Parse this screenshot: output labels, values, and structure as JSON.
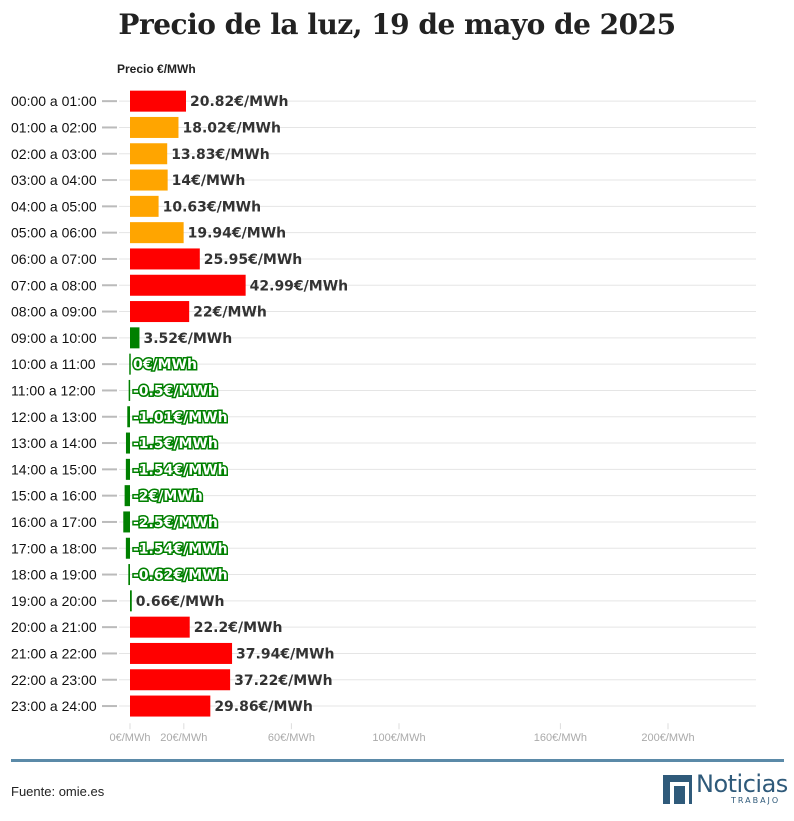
{
  "title": "Precio de la luz, 19 de mayo de 2025",
  "source": "Fuente: omie.es",
  "logo": {
    "word": "Noticias",
    "sub": "TRABAJO",
    "icon": "noticias-trabajo-logo-icon"
  },
  "colors": {
    "red": "#ff0000",
    "orange": "#ffa500",
    "green": "#008000",
    "grid": "#e5e5e5",
    "brand": "#2f5a7a"
  },
  "chart_data": {
    "type": "bar",
    "orientation": "horizontal",
    "value_axis_label": "Precio €/MWh",
    "xlim": [
      0,
      210
    ],
    "grid": true,
    "ticks": [
      {
        "value": 0,
        "label": "0€/MWh"
      },
      {
        "value": 20,
        "label": "20€/MWh"
      },
      {
        "value": 60,
        "label": "60€/MWh"
      },
      {
        "value": 100,
        "label": "100€/MWh"
      },
      {
        "value": 160,
        "label": "160€/MWh"
      },
      {
        "value": 200,
        "label": "200€/MWh"
      }
    ],
    "bars": [
      {
        "category": "00:00 a 01:00",
        "value": 20.82,
        "label": "20.82€/MWh",
        "color": "#ff0000"
      },
      {
        "category": "01:00 a 02:00",
        "value": 18.02,
        "label": "18.02€/MWh",
        "color": "#ffa500"
      },
      {
        "category": "02:00 a 03:00",
        "value": 13.83,
        "label": "13.83€/MWh",
        "color": "#ffa500"
      },
      {
        "category": "03:00 a 04:00",
        "value": 14,
        "label": "14€/MWh",
        "color": "#ffa500"
      },
      {
        "category": "04:00 a 05:00",
        "value": 10.63,
        "label": "10.63€/MWh",
        "color": "#ffa500"
      },
      {
        "category": "05:00 a 06:00",
        "value": 19.94,
        "label": "19.94€/MWh",
        "color": "#ffa500"
      },
      {
        "category": "06:00 a 07:00",
        "value": 25.95,
        "label": "25.95€/MWh",
        "color": "#ff0000"
      },
      {
        "category": "07:00 a 08:00",
        "value": 42.99,
        "label": "42.99€/MWh",
        "color": "#ff0000"
      },
      {
        "category": "08:00 a 09:00",
        "value": 22,
        "label": "22€/MWh",
        "color": "#ff0000"
      },
      {
        "category": "09:00 a 10:00",
        "value": 3.52,
        "label": "3.52€/MWh",
        "color": "#008000"
      },
      {
        "category": "10:00 a 11:00",
        "value": 0,
        "label": "0€/MWh",
        "color": "#008000"
      },
      {
        "category": "11:00 a 12:00",
        "value": -0.5,
        "label": "-0.5€/MWh",
        "color": "#008000"
      },
      {
        "category": "12:00 a 13:00",
        "value": -1.01,
        "label": "-1.01€/MWh",
        "color": "#008000"
      },
      {
        "category": "13:00 a 14:00",
        "value": -1.5,
        "label": "-1.5€/MWh",
        "color": "#008000"
      },
      {
        "category": "14:00 a 15:00",
        "value": -1.54,
        "label": "-1.54€/MWh",
        "color": "#008000"
      },
      {
        "category": "15:00 a 16:00",
        "value": -2,
        "label": "-2€/MWh",
        "color": "#008000"
      },
      {
        "category": "16:00 a 17:00",
        "value": -2.5,
        "label": "-2.5€/MWh",
        "color": "#008000"
      },
      {
        "category": "17:00 a 18:00",
        "value": -1.54,
        "label": "-1.54€/MWh",
        "color": "#008000"
      },
      {
        "category": "18:00 a 19:00",
        "value": -0.62,
        "label": "-0.62€/MWh",
        "color": "#008000"
      },
      {
        "category": "19:00 a 20:00",
        "value": 0.66,
        "label": "0.66€/MWh",
        "color": "#008000"
      },
      {
        "category": "20:00 a 21:00",
        "value": 22.2,
        "label": "22.2€/MWh",
        "color": "#ff0000"
      },
      {
        "category": "21:00 a 22:00",
        "value": 37.94,
        "label": "37.94€/MWh",
        "color": "#ff0000"
      },
      {
        "category": "22:00 a 23:00",
        "value": 37.22,
        "label": "37.22€/MWh",
        "color": "#ff0000"
      },
      {
        "category": "23:00 a 24:00",
        "value": 29.86,
        "label": "29.86€/MWh",
        "color": "#ff0000"
      }
    ]
  }
}
